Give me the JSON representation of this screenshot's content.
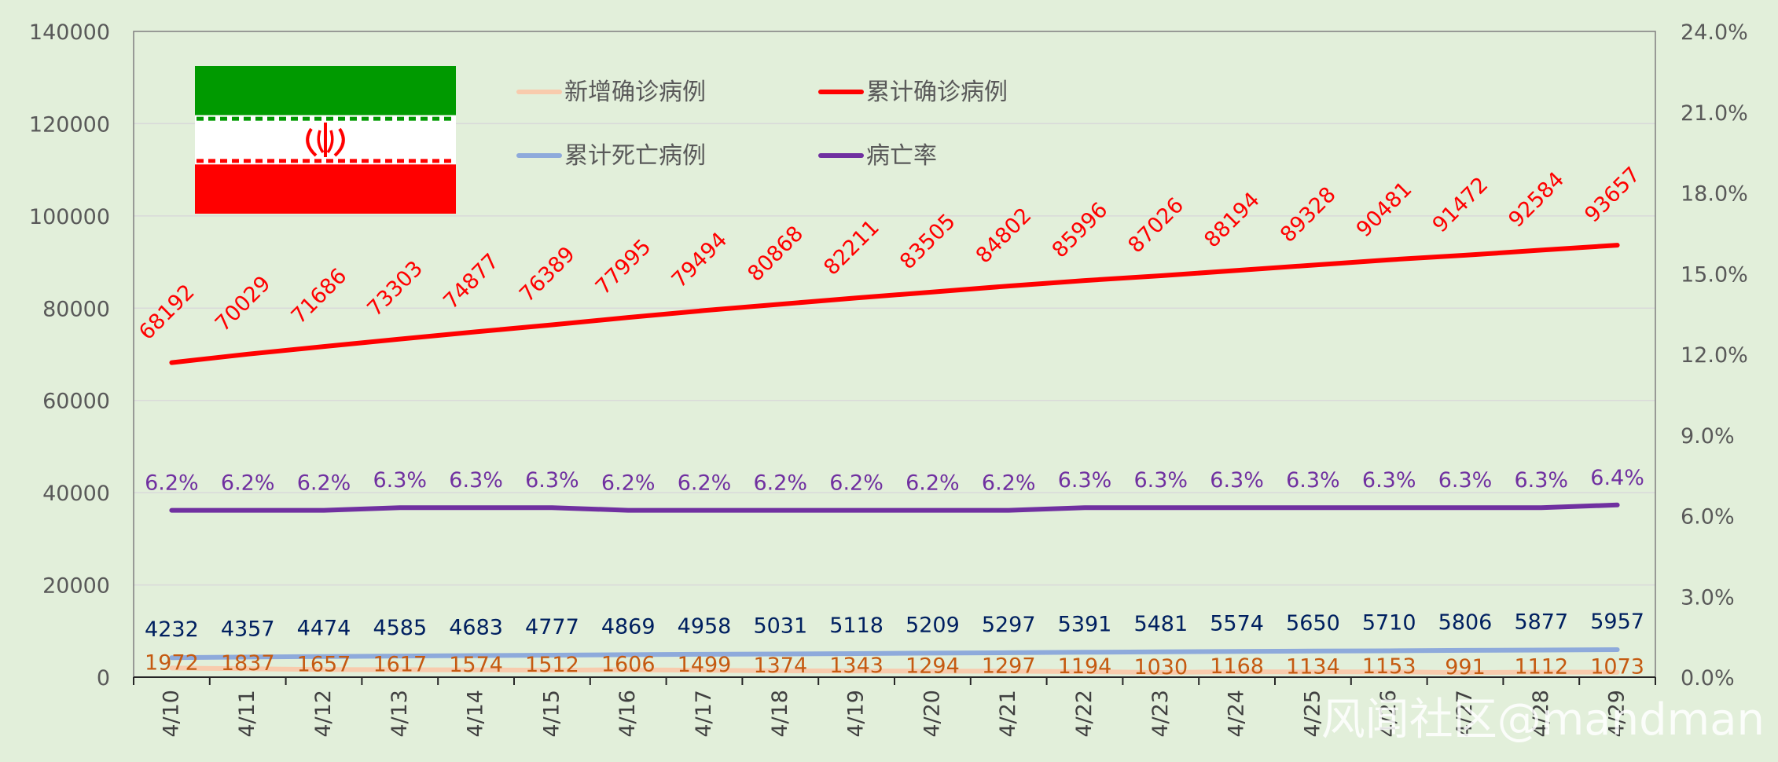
{
  "chart_data": {
    "type": "line",
    "categories": [
      "4/10",
      "4/11",
      "4/12",
      "4/13",
      "4/14",
      "4/15",
      "4/16",
      "4/17",
      "4/18",
      "4/19",
      "4/20",
      "4/21",
      "4/22",
      "4/23",
      "4/24",
      "4/25",
      "4/26",
      "4/27",
      "4/28",
      "4/29"
    ],
    "left_axis": {
      "ylim": [
        0,
        140000
      ],
      "ticks": [
        "0",
        "20000",
        "40000",
        "60000",
        "80000",
        "100000",
        "120000",
        "140000"
      ]
    },
    "right_axis": {
      "ylim": [
        0,
        0.24
      ],
      "ticks": [
        "0.0%",
        "3.0%",
        "6.0%",
        "9.0%",
        "12.0%",
        "15.0%",
        "18.0%",
        "21.0%",
        "24.0%"
      ]
    },
    "grid": true,
    "legend_position": "top-center",
    "series": [
      {
        "name": "新增确诊病例",
        "color": "#f8cbad",
        "label_color": "#c55a11",
        "axis": "left",
        "values": [
          1972,
          1837,
          1657,
          1617,
          1574,
          1512,
          1606,
          1499,
          1374,
          1343,
          1294,
          1297,
          1194,
          1030,
          1168,
          1134,
          1153,
          991,
          1112,
          1073
        ]
      },
      {
        "name": "累计确诊病例",
        "color": "#ff0000",
        "label_color": "#ff0000",
        "axis": "left",
        "values": [
          68192,
          70029,
          71686,
          73303,
          74877,
          76389,
          77995,
          79494,
          80868,
          82211,
          83505,
          84802,
          85996,
          87026,
          88194,
          89328,
          90481,
          91472,
          92584,
          93657
        ]
      },
      {
        "name": "累计死亡病例",
        "color": "#8eaadb",
        "label_color": "#002060",
        "axis": "left",
        "values": [
          4232,
          4357,
          4474,
          4585,
          4683,
          4777,
          4869,
          4958,
          5031,
          5118,
          5209,
          5297,
          5391,
          5481,
          5574,
          5650,
          5710,
          5806,
          5877,
          5957
        ]
      },
      {
        "name": "病亡率",
        "color": "#7030a0",
        "label_color": "#7030a0",
        "axis": "right",
        "values": [
          0.062,
          0.062,
          0.062,
          0.063,
          0.063,
          0.063,
          0.062,
          0.062,
          0.062,
          0.062,
          0.062,
          0.062,
          0.063,
          0.063,
          0.063,
          0.063,
          0.063,
          0.063,
          0.063,
          0.064
        ],
        "labels": [
          "6.2%",
          "6.2%",
          "6.2%",
          "6.3%",
          "6.3%",
          "6.3%",
          "6.2%",
          "6.2%",
          "6.2%",
          "6.2%",
          "6.2%",
          "6.2%",
          "6.3%",
          "6.3%",
          "6.3%",
          "6.3%",
          "6.3%",
          "6.3%",
          "6.3%",
          "6.4%"
        ]
      }
    ]
  },
  "flag": {
    "colors": {
      "green": "#009a00",
      "white": "#ffffff",
      "red": "#ff0000"
    },
    "emblem_icon": "iran-emblem-icon"
  },
  "watermark": {
    "text": "风闻社区@mandman"
  }
}
